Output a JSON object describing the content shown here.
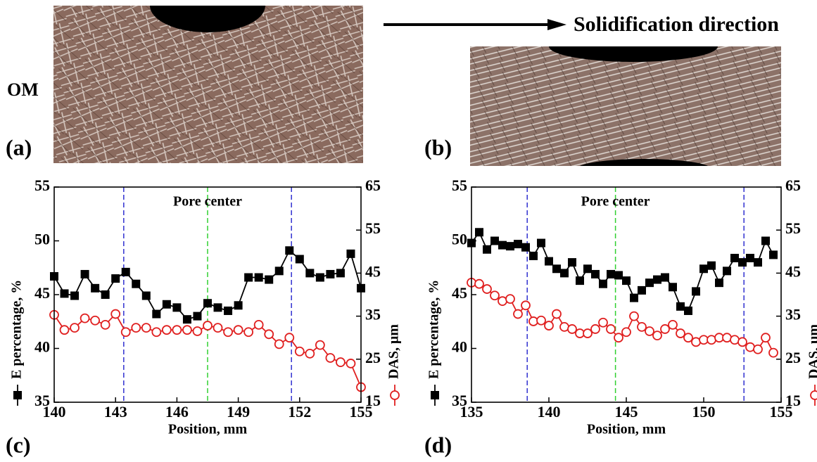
{
  "labels": {
    "om": "OM",
    "direction": "Solidification direction",
    "a": "(a)",
    "b": "(b)",
    "c": "(c)",
    "d": "(d)"
  },
  "chart_data": [
    {
      "type": "line",
      "xlabel": "Position, mm",
      "annotation": "Pore center",
      "xlim": [
        140,
        155
      ],
      "xticks": [
        140,
        143,
        146,
        149,
        152,
        155
      ],
      "ylim": [
        35,
        55
      ],
      "yticks": [
        35,
        40,
        45,
        50,
        55
      ],
      "y2lim": [
        15,
        65
      ],
      "y2ticks": [
        15,
        25,
        35,
        45,
        55,
        65
      ],
      "vlines": [
        {
          "x": 143.4,
          "color": "#3030d0"
        },
        {
          "x": 147.5,
          "color": "#30d030"
        },
        {
          "x": 151.6,
          "color": "#3030d0"
        }
      ],
      "x": [
        140,
        140.5,
        141,
        141.5,
        142,
        142.5,
        143,
        143.5,
        144,
        144.5,
        145,
        145.5,
        146,
        146.5,
        147,
        147.5,
        148,
        148.5,
        149,
        149.5,
        150,
        150.5,
        151,
        151.5,
        152,
        152.5,
        153,
        153.5,
        154,
        154.5,
        155
      ],
      "series": [
        {
          "name": "E percentage, %",
          "color": "#000000",
          "marker": "square",
          "axis": "y",
          "values": [
            46.7,
            45.1,
            44.9,
            46.9,
            45.6,
            45.0,
            46.5,
            47.1,
            46.0,
            44.9,
            43.2,
            44.1,
            43.8,
            42.7,
            43.0,
            44.2,
            43.8,
            43.5,
            44.0,
            46.6,
            46.6,
            46.4,
            47.2,
            49.1,
            48.3,
            47.0,
            46.6,
            46.9,
            47.0,
            48.8,
            45.6
          ]
        },
        {
          "name": "DAS, μm",
          "color": "#e02020",
          "marker": "circle-open",
          "axis": "y2",
          "values": [
            35.3,
            31.8,
            32.3,
            34.5,
            34.0,
            33.0,
            35.5,
            31.3,
            32.3,
            32.3,
            31.3,
            31.8,
            31.8,
            31.8,
            31.5,
            32.8,
            32.3,
            31.3,
            31.8,
            31.3,
            33.0,
            30.8,
            28.5,
            30.0,
            26.8,
            26.3,
            28.3,
            25.3,
            24.3,
            24.0,
            18.5
          ]
        }
      ]
    },
    {
      "type": "line",
      "xlabel": "Position, mm",
      "annotation": "Pore center",
      "xlim": [
        135,
        155
      ],
      "xticks": [
        135,
        140,
        145,
        150,
        155
      ],
      "ylim": [
        35,
        55
      ],
      "yticks": [
        35,
        40,
        45,
        50,
        55
      ],
      "y2lim": [
        15,
        65
      ],
      "y2ticks": [
        15,
        25,
        35,
        45,
        55,
        65
      ],
      "vlines": [
        {
          "x": 138.6,
          "color": "#3030d0"
        },
        {
          "x": 144.3,
          "color": "#30d030"
        },
        {
          "x": 152.6,
          "color": "#3030d0"
        }
      ],
      "x": [
        135,
        135.5,
        136,
        136.5,
        137,
        137.5,
        138,
        138.5,
        139,
        139.5,
        140,
        140.5,
        141,
        141.5,
        142,
        142.5,
        143,
        143.5,
        144,
        144.5,
        145,
        145.5,
        146,
        146.5,
        147,
        147.5,
        148,
        148.5,
        149,
        149.5,
        150,
        150.5,
        151,
        151.5,
        152,
        152.5,
        153,
        153.5,
        154,
        154.5
      ],
      "series": [
        {
          "name": "E percentage, %",
          "color": "#000000",
          "marker": "square",
          "axis": "y",
          "values": [
            49.8,
            50.8,
            49.2,
            50.0,
            49.6,
            49.5,
            49.7,
            49.4,
            48.6,
            49.8,
            48.1,
            47.4,
            47.0,
            48.0,
            46.3,
            47.4,
            46.9,
            46.0,
            46.9,
            46.8,
            46.3,
            44.7,
            45.4,
            46.1,
            46.4,
            46.6,
            45.7,
            43.9,
            43.5,
            45.3,
            47.4,
            47.7,
            46.1,
            47.2,
            48.4,
            48.0,
            48.4,
            48.0,
            50.0,
            48.7
          ]
        },
        {
          "name": "DAS, μm",
          "color": "#e02020",
          "marker": "circle-open",
          "axis": "y2",
          "values": [
            42.8,
            42.5,
            41.3,
            39.8,
            38.5,
            39.0,
            35.5,
            37.5,
            33.8,
            34.0,
            32.8,
            35.5,
            32.5,
            32.0,
            31.0,
            31.0,
            32.0,
            33.5,
            32.0,
            30.0,
            31.3,
            35.0,
            32.5,
            31.5,
            30.5,
            32.0,
            33.0,
            31.0,
            30.0,
            29.0,
            29.5,
            29.5,
            30.0,
            30.0,
            29.5,
            29.0,
            27.8,
            27.3,
            30.0,
            26.5
          ]
        }
      ]
    }
  ]
}
